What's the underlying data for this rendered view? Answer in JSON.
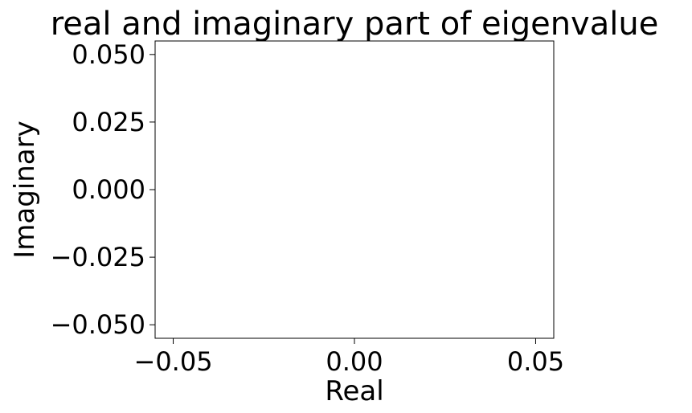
{
  "chart_data": {
    "type": "scatter",
    "title": "real and imaginary part of eigenvalue",
    "xlabel": "Real",
    "ylabel": "Imaginary",
    "xlim": [
      -0.055,
      0.055
    ],
    "ylim": [
      -0.055,
      0.055
    ],
    "grid": false,
    "x_ticks": [
      -0.05,
      0.0,
      0.05
    ],
    "x_tick_labels": [
      "−0.05",
      "0.00",
      "0.05"
    ],
    "y_ticks": [
      -0.05,
      -0.025,
      0.0,
      0.025,
      0.05
    ],
    "y_tick_labels": [
      "−0.050",
      "−0.025",
      "0.000",
      "0.025",
      "0.050"
    ],
    "series": [
      {
        "x": [],
        "y": []
      }
    ],
    "colors": {
      "axis": "#000000",
      "background": "#ffffff"
    }
  }
}
